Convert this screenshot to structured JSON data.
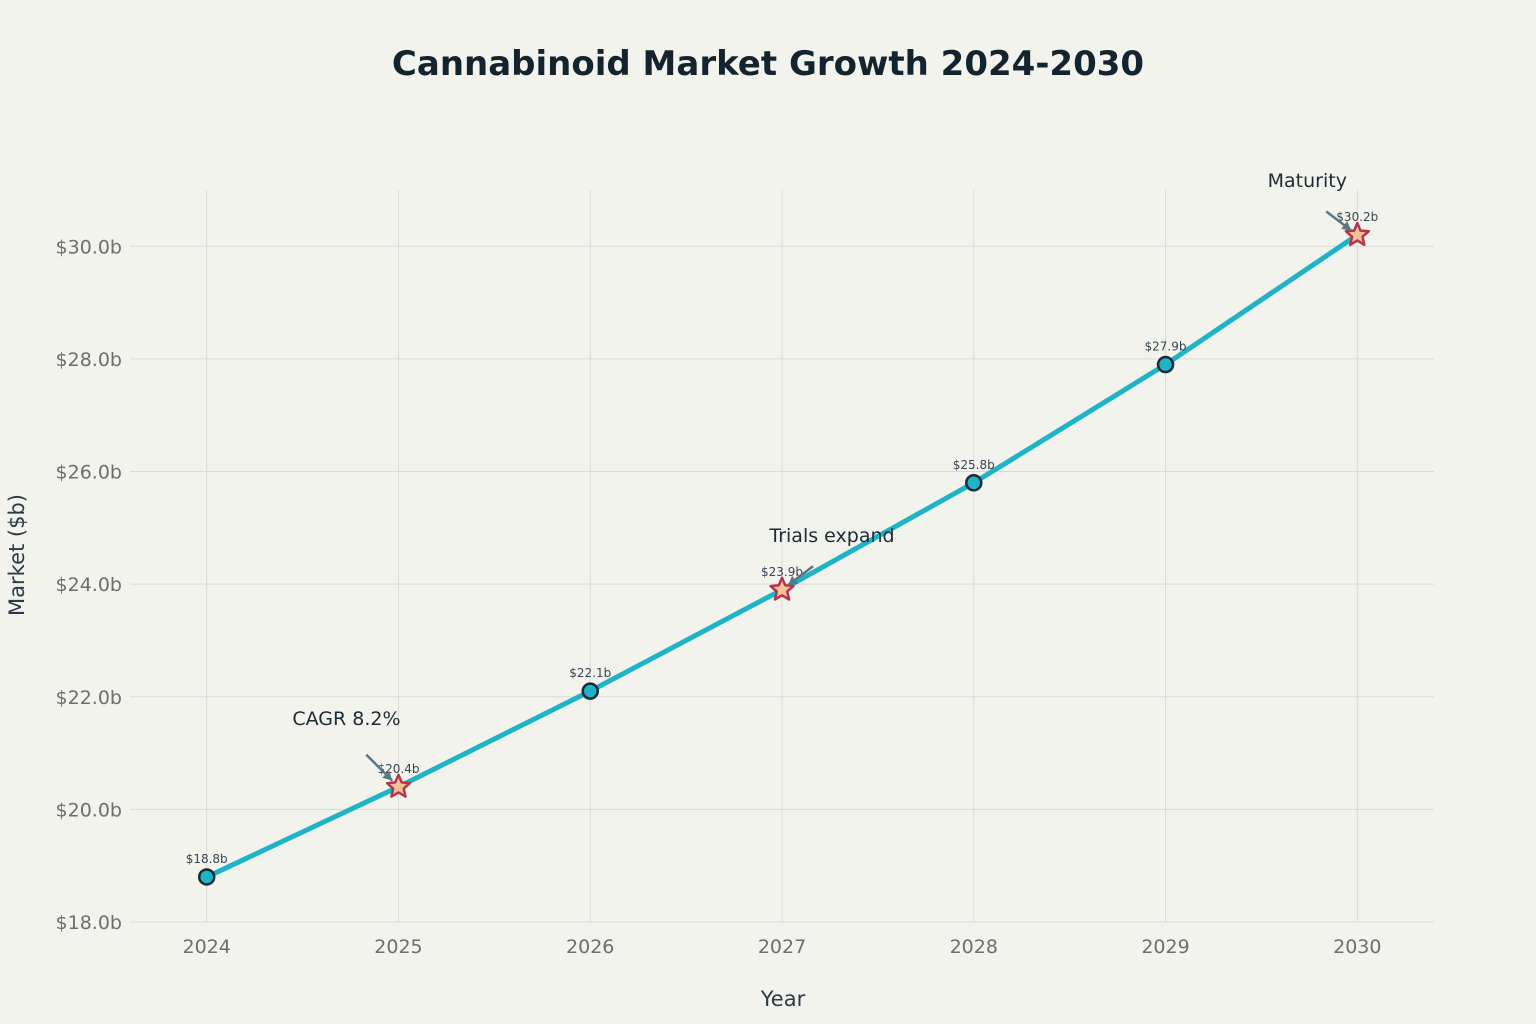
{
  "chart_data": {
    "type": "line",
    "title": "Cannabinoid Market Growth 2024-2030",
    "xlabel": "Year",
    "ylabel": "Market ($b)",
    "x": [
      2024,
      2025,
      2026,
      2027,
      2028,
      2029,
      2030
    ],
    "y": [
      18.8,
      20.4,
      22.1,
      23.9,
      25.8,
      27.9,
      30.2
    ],
    "data_labels": [
      "$18.8b",
      "$20.4b",
      "$22.1b",
      "$23.9b",
      "$25.8b",
      "$27.9b",
      "$30.2b"
    ],
    "x_tick_labels": [
      "2024",
      "2025",
      "2026",
      "2027",
      "2028",
      "2029",
      "2030"
    ],
    "y_ticks": [
      18,
      20,
      22,
      24,
      26,
      28,
      30
    ],
    "y_tick_labels": [
      "$18.0b",
      "$20.0b",
      "$22.0b",
      "$24.0b",
      "$26.0b",
      "$28.0b",
      "$30.0b"
    ],
    "xlim": [
      2023.6,
      2030.4
    ],
    "ylim": [
      18.0,
      31.0
    ],
    "grid": true,
    "line_color": "#1fb3c7",
    "marker_color": "#1fb3c7",
    "highlight_marker_color": "#f3c29a",
    "highlight_marker_edge": "#b5364a",
    "highlight_x": [
      2025,
      2027,
      2030
    ],
    "annotations": [
      {
        "text": "CAGR 8.2%",
        "x": 2025,
        "y": 20.4
      },
      {
        "text": "Trials expand",
        "x": 2027,
        "y": 23.9
      },
      {
        "text": "Maturity",
        "x": 2030,
        "y": 30.2
      }
    ]
  }
}
